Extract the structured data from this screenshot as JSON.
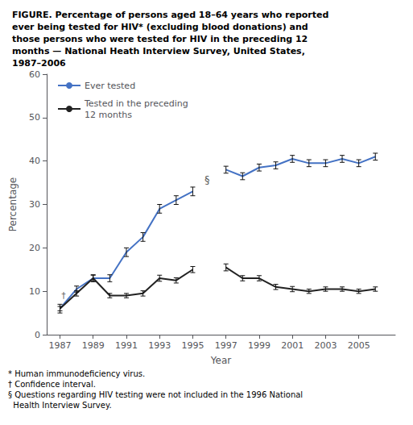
{
  "chart_data": {
    "type": "line",
    "title": "FIGURE. Percentage of persons aged 18–64 years who reported\never being tested for HIV* (excluding blood donations) and\nthose persons who were tested for HIV in the preceding 12\nmonths — National Heath Interview Survey, United States,\n1987–2006",
    "x": [
      1987,
      1988,
      1989,
      1990,
      1991,
      1992,
      1993,
      1994,
      1995,
      1996,
      1997,
      1998,
      1999,
      2000,
      2001,
      2002,
      2003,
      2004,
      2005,
      2006
    ],
    "series": [
      {
        "name": "Ever tested",
        "color": "#4472C4",
        "values": [
          6.0,
          10.5,
          13.0,
          13.0,
          19.0,
          22.5,
          29.0,
          31.0,
          33.0,
          null,
          38.0,
          36.5,
          38.5,
          39.0,
          40.5,
          39.5,
          39.5,
          40.5,
          39.5,
          41.0
        ],
        "err_low": [
          1.0,
          0.7,
          0.8,
          0.8,
          1.0,
          1.0,
          1.0,
          1.0,
          1.0,
          null,
          0.8,
          0.8,
          0.8,
          0.8,
          0.8,
          0.8,
          0.8,
          0.8,
          0.8,
          0.8
        ],
        "err_high": [
          1.0,
          0.7,
          0.8,
          0.8,
          1.0,
          1.0,
          1.0,
          1.0,
          1.0,
          null,
          0.8,
          0.8,
          0.8,
          0.8,
          0.8,
          0.8,
          0.8,
          0.8,
          0.8,
          0.8
        ]
      },
      {
        "name": "Tested in the preceding\n12 months",
        "color": "#222222",
        "values": [
          6.0,
          9.5,
          13.0,
          9.0,
          9.0,
          9.5,
          13.0,
          12.5,
          15.0,
          null,
          15.5,
          13.0,
          13.0,
          11.0,
          10.5,
          10.0,
          10.5,
          10.5,
          10.0,
          10.5
        ],
        "err_low": [
          0.5,
          0.6,
          0.7,
          0.5,
          0.5,
          0.6,
          0.7,
          0.6,
          0.7,
          null,
          0.8,
          0.6,
          0.6,
          0.6,
          0.6,
          0.5,
          0.5,
          0.5,
          0.5,
          0.5
        ],
        "err_high": [
          0.5,
          0.6,
          0.7,
          0.5,
          0.5,
          0.6,
          0.7,
          0.6,
          0.7,
          null,
          0.8,
          0.6,
          0.6,
          0.6,
          0.6,
          0.5,
          0.5,
          0.5,
          0.5,
          0.5
        ]
      }
    ],
    "xlim": [
      1986.2,
      2007.2
    ],
    "xticks": [
      1987,
      1989,
      1991,
      1993,
      1995,
      1997,
      1999,
      2001,
      2003,
      2005
    ],
    "ylim": [
      0,
      60
    ],
    "yticks": [
      0,
      10,
      20,
      30,
      40,
      50,
      60
    ],
    "xlabel": "Year",
    "ylabel": "Percentage",
    "grid": false,
    "legend": "upper left",
    "annotations": [
      {
        "text": "§",
        "x": 1995.7,
        "y": 34.5
      },
      {
        "text": "†",
        "x": 1987.08,
        "y": 9.0
      }
    ],
    "footnotes": [
      "* Human immunodeficiency virus.",
      "† Confidence interval.",
      "§ Questions regarding HIV testing were not included in the 1996 National\n  Health Interview Survey."
    ]
  }
}
